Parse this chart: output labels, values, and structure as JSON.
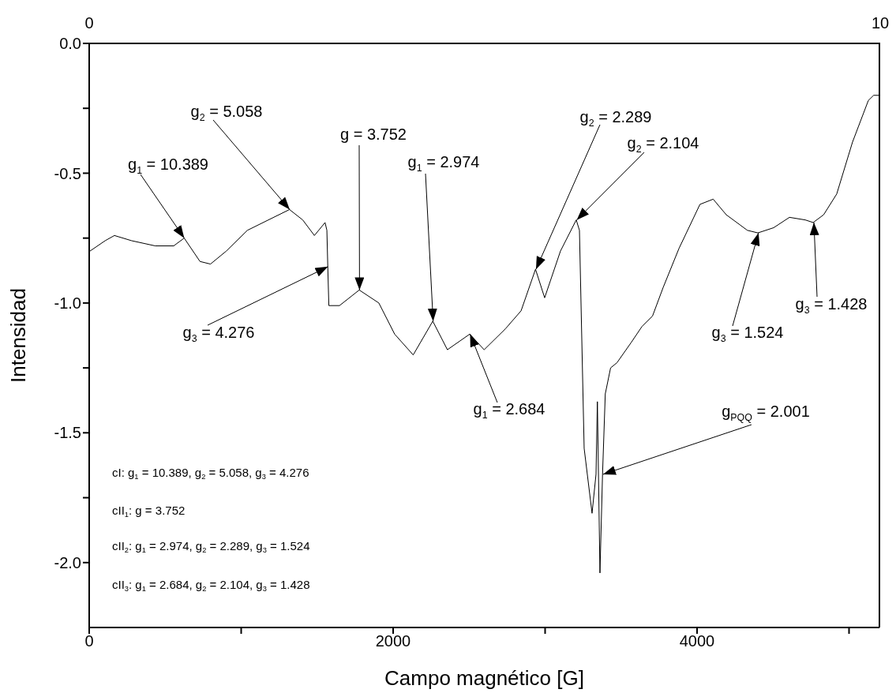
{
  "chart_data": {
    "type": "line",
    "xlabel": "Campo magnético [G]",
    "ylabel": "Intensidad",
    "marker": "none",
    "line_style": "solid",
    "x": [
      5,
      105,
      166,
      279,
      435,
      556,
      625,
      729,
      798,
      902,
      1041,
      1179,
      1318,
      1405,
      1482,
      1552,
      1564,
      1570,
      1577,
      1647,
      1777,
      1906,
      2010,
      2132,
      2261,
      2357,
      2504,
      2599,
      2738,
      2842,
      2937,
      2997,
      3101,
      3205,
      3226,
      3257,
      3309,
      3335,
      3344,
      3361,
      3378,
      3396,
      3431,
      3473,
      3569,
      3638,
      3707,
      3777,
      3881,
      4019,
      4106,
      4192,
      4331,
      4400,
      4504,
      4608,
      4712,
      4764,
      4833,
      4919,
      5023,
      5127,
      5162,
      5197
    ],
    "series": [
      {
        "color": "#000000",
        "values": [
          -0.8,
          -0.76,
          -0.74,
          -0.76,
          -0.78,
          -0.78,
          -0.75,
          -0.84,
          -0.85,
          -0.8,
          -0.72,
          -0.68,
          -0.64,
          -0.68,
          -0.74,
          -0.69,
          -0.72,
          -0.86,
          -1.01,
          -1.01,
          -0.95,
          -1.0,
          -1.12,
          -1.2,
          -1.07,
          -1.18,
          -1.12,
          -1.18,
          -1.1,
          -1.03,
          -0.87,
          -0.98,
          -0.8,
          -0.68,
          -0.72,
          -1.56,
          -1.81,
          -1.66,
          -1.38,
          -2.04,
          -1.66,
          -1.35,
          -1.25,
          -1.23,
          -1.15,
          -1.09,
          -1.05,
          -0.94,
          -0.79,
          -0.62,
          -0.6,
          -0.66,
          -0.72,
          -0.73,
          -0.71,
          -0.67,
          -0.68,
          -0.69,
          -0.66,
          -0.58,
          -0.38,
          -0.22,
          -0.2,
          -0.2
        ]
      }
    ],
    "xlim": [
      0,
      5200
    ],
    "xticks": [
      0,
      {
        "value": 1000,
        "label": null
      },
      2000,
      {
        "value": 3000,
        "label": null
      },
      4000,
      {
        "value": 5000,
        "label": null
      }
    ],
    "ylim": [
      -2.25,
      0
    ],
    "yticks": [
      {
        "value": 0,
        "label": "0.0"
      },
      {
        "value": -0.25,
        "label": null
      },
      {
        "value": -0.5,
        "label": "-0.5"
      },
      {
        "value": -0.75,
        "label": null
      },
      {
        "value": -1.0,
        "label": "-1.0"
      },
      {
        "value": -1.25,
        "label": null
      },
      {
        "value": -1.5,
        "label": "-1.5"
      },
      {
        "value": -1.75,
        "label": null
      },
      {
        "value": -2.0,
        "label": "-2.0"
      }
    ],
    "x2lim": [
      0,
      10
    ],
    "x2ticks": [
      0,
      10
    ],
    "annotations": [
      {
        "text": "g$_{1}$ = 10.389",
        "x": 625,
        "y": -0.75
      },
      {
        "text": "g$_{2}$ = 5.058",
        "x": 1318,
        "y": -0.64
      },
      {
        "text": "g$_{3}$ = 4.276",
        "x": 1570,
        "y": -0.86
      },
      {
        "text": "g = 3.752",
        "x": 1777,
        "y": -0.95
      },
      {
        "text": "g$_{1}$ = 2.974",
        "x": 2261,
        "y": -1.07
      },
      {
        "text": "g$_{1}$ = 2.684",
        "x": 2504,
        "y": -1.12
      },
      {
        "text": "g$_{2}$ = 2.289",
        "x": 2937,
        "y": -0.87
      },
      {
        "text": "g$_{2}$ = 2.104",
        "x": 3205,
        "y": -0.68
      },
      {
        "text": "g$_{PQQ}$ = 2.001",
        "x": 3378,
        "y": -1.66
      },
      {
        "text": "g$_{3}$ = 1.524",
        "x": 4400,
        "y": -0.73
      },
      {
        "text": "g$_{3}$ = 1.428",
        "x": 4764,
        "y": -0.69
      },
      "cI: g$_{1}$ = 10.389, g$_{2}$ = 5.058, g$_{3}$ = 4.276",
      "cII$_{1}$: g = 3.752",
      "cII$_{2}$: g$_{1}$ = 2.974, g$_{2}$ = 2.289, g$_{3}$ = 1.524",
      "cII$_{3}$: g$_{1}$ = 2.684, g$_{2}$ = 2.104, g$_{3}$ = 1.428"
    ]
  }
}
